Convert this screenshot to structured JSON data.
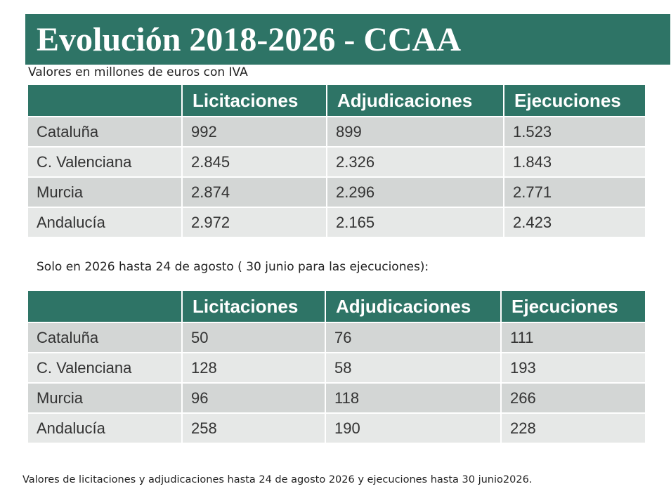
{
  "title": "Evolución 2018-2026 - CCAA",
  "subtitle": "Valores en millones de euros con IVA",
  "note": "Solo en 2026 hasta 24 de agosto ( 30 junio para las ejecuciones):",
  "footer": "Valores de licitaciones y adjudicaciones hasta  24 de agosto 2026 y ejecuciones hasta  30 junio2026.",
  "columns": [
    "",
    "Licitaciones",
    "Adjudicaciones",
    "Ejecuciones"
  ],
  "table1": [
    [
      "Cataluña",
      "992",
      "899",
      "1.523"
    ],
    [
      "C. Valenciana",
      "2.845",
      "2.326",
      "1.843"
    ],
    [
      "Murcia",
      "2.874",
      "2.296",
      "2.771"
    ],
    [
      "Andalucía",
      "2.972",
      "2.165",
      "2.423"
    ]
  ],
  "table2": [
    [
      "Cataluña",
      "50",
      "76",
      "111"
    ],
    [
      "C. Valenciana",
      "128",
      "58",
      "193"
    ],
    [
      "Murcia",
      "96",
      "118",
      "266"
    ],
    [
      "Andalucía",
      "258",
      "190",
      "228"
    ]
  ],
  "colors": {
    "header": "#2e7466",
    "row_dark": "#d3d6d5",
    "row_light": "#e6e8e7"
  }
}
